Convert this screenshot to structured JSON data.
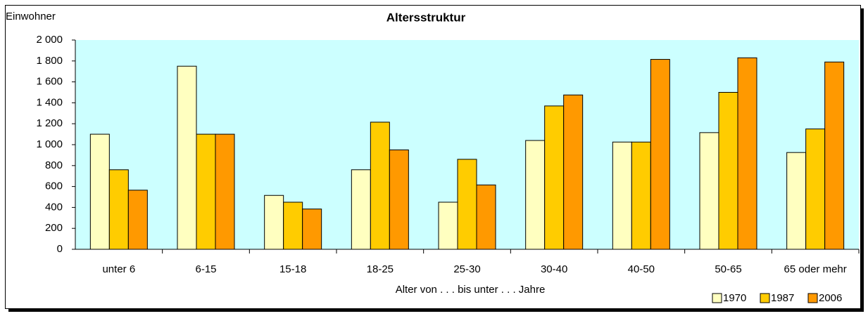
{
  "chart_data": {
    "type": "bar",
    "title": "Altersstruktur",
    "y_label": "Einwohner",
    "x_label": "Alter von . . . bis unter . . . Jahre",
    "categories": [
      "unter 6",
      "6-15",
      "15-18",
      "18-25",
      "25-30",
      "30-40",
      "40-50",
      "50-65",
      "65 oder mehr"
    ],
    "series": [
      {
        "name": "1970",
        "color": "#ffffc0",
        "values": [
          1100,
          1750,
          515,
          760,
          450,
          1040,
          1025,
          1115,
          925
        ]
      },
      {
        "name": "1987",
        "color": "#ffcc00",
        "values": [
          760,
          1100,
          450,
          1215,
          860,
          1370,
          1025,
          1500,
          1150
        ]
      },
      {
        "name": "2006",
        "color": "#ff9900",
        "values": [
          565,
          1100,
          385,
          950,
          615,
          1475,
          1815,
          1830,
          1790
        ]
      }
    ],
    "ylim": [
      0,
      2000
    ],
    "yticks": [
      0,
      200,
      400,
      600,
      800,
      {
        "value": 1000,
        "label": "1 000"
      },
      {
        "value": 1200,
        "label": "1 200"
      },
      {
        "value": 1400,
        "label": "1 400"
      },
      {
        "value": 1600,
        "label": "1 600"
      },
      {
        "value": 1800,
        "label": "1 800"
      },
      {
        "value": 2000,
        "label": "2 000"
      }
    ],
    "plot_background": "#ccffff",
    "legend": "bottom-right"
  }
}
